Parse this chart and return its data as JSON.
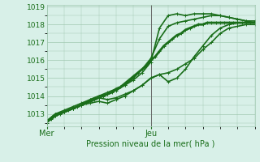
{
  "background_color": "#d8f0e8",
  "grid_color": "#a0c8b0",
  "line_color": "#1a6e1a",
  "xlabel": "Pression niveau de la mer( hPa )",
  "yticks": [
    1013,
    1014,
    1015,
    1016,
    1017,
    1018,
    1019
  ],
  "ylim": [
    1012.3,
    1019.1
  ],
  "xlim": [
    0,
    48
  ],
  "xtick_positions": [
    0,
    24
  ],
  "xtick_labels": [
    "Mer",
    "Jeu"
  ],
  "vline_x": 24,
  "series": [
    {
      "x": [
        0,
        1,
        2,
        3,
        4,
        5,
        6,
        7,
        8,
        9,
        10,
        11,
        12,
        13,
        14,
        15,
        16,
        17,
        18,
        19,
        20,
        21,
        22,
        23,
        24,
        25,
        26,
        27,
        28,
        29,
        30,
        31,
        32,
        33,
        34,
        35,
        36,
        37,
        38,
        39,
        40,
        41,
        42,
        43,
        44,
        45,
        46,
        47,
        48
      ],
      "y": [
        1012.6,
        1012.7,
        1012.9,
        1013.0,
        1013.1,
        1013.2,
        1013.3,
        1013.4,
        1013.5,
        1013.6,
        1013.7,
        1013.8,
        1013.9,
        1014.0,
        1014.1,
        1014.2,
        1014.4,
        1014.5,
        1014.7,
        1014.9,
        1015.1,
        1015.3,
        1015.5,
        1015.7,
        1016.0,
        1016.2,
        1016.5,
        1016.8,
        1017.0,
        1017.2,
        1017.4,
        1017.5,
        1017.7,
        1017.8,
        1017.9,
        1018.0,
        1018.0,
        1018.1,
        1018.1,
        1018.1,
        1018.1,
        1018.1,
        1018.1,
        1018.1,
        1018.1,
        1018.1,
        1018.1,
        1018.1,
        1018.1
      ],
      "lw": 2.0,
      "marker": "+"
    },
    {
      "x": [
        0,
        2,
        4,
        6,
        8,
        10,
        12,
        14,
        16,
        18,
        20,
        22,
        24,
        26,
        28,
        30,
        32,
        34,
        36,
        38,
        40,
        42,
        44,
        46,
        48
      ],
      "y": [
        1012.6,
        1013.0,
        1013.2,
        1013.4,
        1013.6,
        1013.8,
        1014.0,
        1014.2,
        1014.4,
        1014.6,
        1014.9,
        1015.3,
        1015.9,
        1017.8,
        1018.5,
        1018.6,
        1018.5,
        1018.6,
        1018.6,
        1018.6,
        1018.5,
        1018.4,
        1018.3,
        1018.2,
        1018.1
      ],
      "lw": 1.2,
      "marker": "+"
    },
    {
      "x": [
        0,
        2,
        4,
        6,
        8,
        10,
        12,
        14,
        16,
        18,
        20,
        22,
        24,
        26,
        28,
        30,
        32,
        34,
        36,
        38,
        40,
        42,
        44,
        46,
        48
      ],
      "y": [
        1012.6,
        1013.0,
        1013.1,
        1013.3,
        1013.5,
        1013.8,
        1014.0,
        1014.1,
        1014.3,
        1014.6,
        1015.0,
        1015.5,
        1016.1,
        1017.2,
        1017.9,
        1018.1,
        1018.2,
        1018.3,
        1018.4,
        1018.5,
        1018.5,
        1018.4,
        1018.3,
        1018.2,
        1018.2
      ],
      "lw": 1.2,
      "marker": "+"
    },
    {
      "x": [
        0,
        2,
        4,
        6,
        8,
        10,
        12,
        14,
        16,
        18,
        20,
        22,
        24,
        26,
        28,
        30,
        32,
        34,
        36,
        38,
        40,
        42,
        44,
        46,
        48
      ],
      "y": [
        1012.6,
        1013.0,
        1013.1,
        1013.3,
        1013.5,
        1013.7,
        1013.9,
        1013.8,
        1013.9,
        1014.1,
        1014.3,
        1014.6,
        1015.0,
        1015.2,
        1014.8,
        1015.0,
        1015.5,
        1016.2,
        1016.8,
        1017.4,
        1017.8,
        1018.0,
        1018.1,
        1018.1,
        1018.1
      ],
      "lw": 1.2,
      "marker": "+"
    },
    {
      "x": [
        0,
        2,
        4,
        6,
        8,
        10,
        12,
        14,
        16,
        18,
        20,
        22,
        24,
        26,
        28,
        30,
        32,
        34,
        36,
        38,
        40,
        42,
        44,
        46,
        48
      ],
      "y": [
        1012.5,
        1012.9,
        1013.1,
        1013.3,
        1013.5,
        1013.6,
        1013.7,
        1013.6,
        1013.8,
        1014.0,
        1014.3,
        1014.6,
        1015.0,
        1015.2,
        1015.3,
        1015.5,
        1015.8,
        1016.1,
        1016.6,
        1017.0,
        1017.5,
        1017.8,
        1017.9,
        1018.0,
        1018.0
      ],
      "lw": 1.2,
      "marker": "+"
    }
  ]
}
